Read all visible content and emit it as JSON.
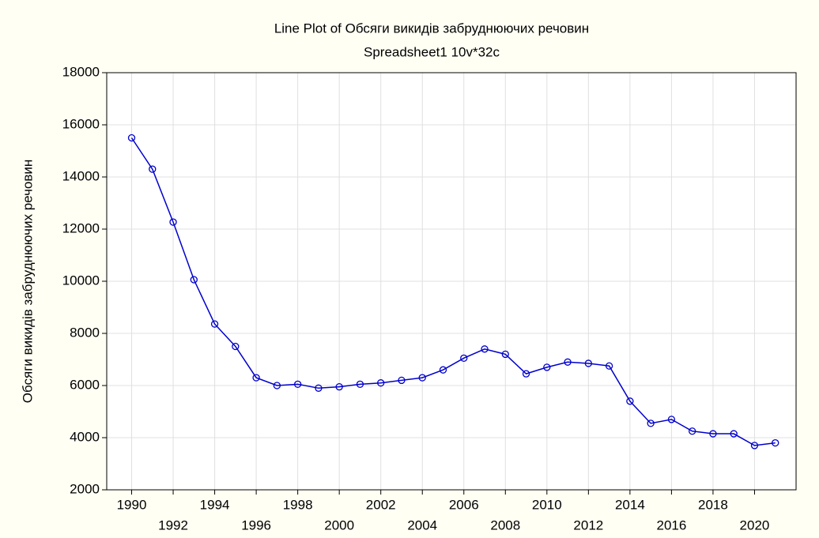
{
  "chart_data": {
    "type": "line",
    "title": "Line Plot of Обсяги викидів забруднюючих речовин",
    "subtitle": "Spreadsheet1 10v*32c",
    "y_label": "Обсяги викидів забруднюючих речовин",
    "x": [
      1990,
      1991,
      1992,
      1993,
      1994,
      1995,
      1996,
      1997,
      1998,
      1999,
      2000,
      2001,
      2002,
      2003,
      2004,
      2005,
      2006,
      2007,
      2008,
      2009,
      2010,
      2011,
      2012,
      2013,
      2014,
      2015,
      2016,
      2017,
      2018,
      2019,
      2020,
      2021
    ],
    "series": [
      {
        "name": "Обсяги викидів забруднюючих речовин",
        "color": "#0000cc",
        "values": [
          15500,
          14300,
          12270,
          10060,
          8360,
          7500,
          6300,
          6000,
          6050,
          5900,
          5950,
          6050,
          6100,
          6200,
          6300,
          6600,
          7050,
          7400,
          7200,
          6450,
          6700,
          6900,
          6850,
          6750,
          5400,
          4550,
          4700,
          4250,
          4150,
          4150,
          3700,
          3800
        ]
      }
    ],
    "xlim": [
      1988.8,
      2022
    ],
    "xticks": [
      1990,
      1992,
      1994,
      1996,
      1998,
      2000,
      2002,
      2004,
      2006,
      2008,
      2010,
      2012,
      2014,
      2016,
      2018,
      2020
    ],
    "ylim": [
      2000,
      18000
    ],
    "yticks": [
      2000,
      4000,
      6000,
      8000,
      10000,
      12000,
      14000,
      16000,
      18000
    ],
    "grid": true
  }
}
